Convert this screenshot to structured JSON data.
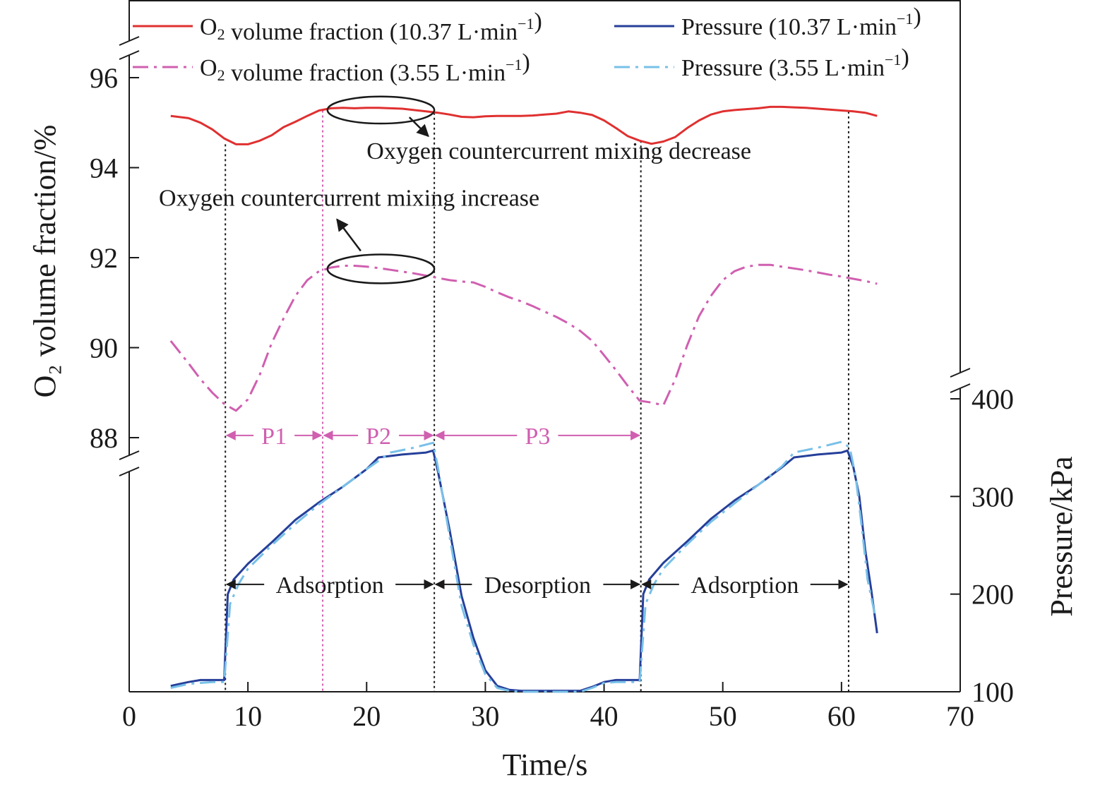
{
  "chart_data": {
    "type": "line",
    "xlabel": "Time/s",
    "ylabel_left": "O₂ volume fraction/%",
    "ylabel_right": "Pressure/kPa",
    "xlim": [
      0,
      70
    ],
    "xticks": [
      0,
      10,
      20,
      30,
      40,
      50,
      60,
      70
    ],
    "ylim_left_segment": [
      87.5,
      96.5
    ],
    "yticks_left": [
      88,
      90,
      92,
      94,
      96
    ],
    "ylim_right_segment": [
      100,
      400
    ],
    "yticks_right": [
      100,
      200,
      300,
      400
    ],
    "grid": false,
    "legend_position": "top",
    "axis_breaks": [
      "left-axis-top",
      "left-axis-lower",
      "right-axis-upper"
    ],
    "legend": [
      {
        "label_pre": "O",
        "label_sub": "2",
        "label_post": " volume fraction (10.37 L·min",
        "label_sup": "−1",
        "label_end": ")",
        "series_ref": 0
      },
      {
        "label_pre": "Pressure (10.37 L·min",
        "label_sub": "",
        "label_post": "",
        "label_sup": "−1",
        "label_end": ")",
        "series_ref": 1
      },
      {
        "label_pre": "O",
        "label_sub": "2",
        "label_post": " volume fraction (3.55 L·min",
        "label_sup": "−1",
        "label_end": ")",
        "series_ref": 2
      },
      {
        "label_pre": "Pressure (3.55 L·min",
        "label_sub": "",
        "label_post": "",
        "label_sup": "−1",
        "label_end": ")",
        "series_ref": 3
      }
    ],
    "series": [
      {
        "axis": "left",
        "color": "#e03030",
        "dash": "solid",
        "points": [
          [
            3.5,
            95.15
          ],
          [
            5,
            95.1
          ],
          [
            6,
            95.0
          ],
          [
            7,
            94.85
          ],
          [
            8,
            94.65
          ],
          [
            9,
            94.52
          ],
          [
            10,
            94.52
          ],
          [
            11,
            94.6
          ],
          [
            12,
            94.72
          ],
          [
            13,
            94.9
          ],
          [
            14,
            95.02
          ],
          [
            15,
            95.15
          ],
          [
            16,
            95.27
          ],
          [
            17,
            95.32
          ],
          [
            18,
            95.33
          ],
          [
            19,
            95.32
          ],
          [
            20,
            95.33
          ],
          [
            21,
            95.33
          ],
          [
            22,
            95.32
          ],
          [
            23,
            95.31
          ],
          [
            24,
            95.28
          ],
          [
            25,
            95.25
          ],
          [
            26,
            95.22
          ],
          [
            27,
            95.18
          ],
          [
            28,
            95.13
          ],
          [
            29,
            95.12
          ],
          [
            30,
            95.14
          ],
          [
            31,
            95.15
          ],
          [
            32,
            95.15
          ],
          [
            33,
            95.15
          ],
          [
            34,
            95.16
          ],
          [
            35,
            95.18
          ],
          [
            36,
            95.2
          ],
          [
            37,
            95.25
          ],
          [
            38,
            95.22
          ],
          [
            39,
            95.17
          ],
          [
            40,
            95.05
          ],
          [
            41,
            94.88
          ],
          [
            42,
            94.7
          ],
          [
            43,
            94.6
          ],
          [
            44,
            94.53
          ],
          [
            45,
            94.58
          ],
          [
            46,
            94.68
          ],
          [
            47,
            94.88
          ],
          [
            48,
            95.05
          ],
          [
            49,
            95.18
          ],
          [
            50,
            95.25
          ],
          [
            51,
            95.28
          ],
          [
            52,
            95.3
          ],
          [
            53,
            95.32
          ],
          [
            54,
            95.35
          ],
          [
            55,
            95.35
          ],
          [
            56,
            95.34
          ],
          [
            57,
            95.33
          ],
          [
            58,
            95.31
          ],
          [
            59,
            95.29
          ],
          [
            60,
            95.27
          ],
          [
            61,
            95.25
          ],
          [
            62,
            95.22
          ],
          [
            63,
            95.15
          ]
        ]
      },
      {
        "axis": "right",
        "color": "#263f9a",
        "dash": "solid",
        "points": [
          [
            3.5,
            106
          ],
          [
            5,
            110
          ],
          [
            6,
            112
          ],
          [
            7,
            112
          ],
          [
            8,
            112
          ],
          [
            8.3,
            200
          ],
          [
            8.8,
            215
          ],
          [
            10,
            231
          ],
          [
            12,
            253
          ],
          [
            14,
            276
          ],
          [
            16,
            294
          ],
          [
            18,
            310
          ],
          [
            20,
            328
          ],
          [
            21,
            340
          ],
          [
            23,
            343
          ],
          [
            25,
            345
          ],
          [
            25.6,
            347
          ],
          [
            26,
            326
          ],
          [
            27,
            265
          ],
          [
            28,
            198
          ],
          [
            29,
            155
          ],
          [
            30,
            122
          ],
          [
            31,
            106
          ],
          [
            32,
            102
          ],
          [
            33,
            101
          ],
          [
            34,
            101
          ],
          [
            35,
            101
          ],
          [
            36,
            101
          ],
          [
            37,
            101
          ],
          [
            38,
            101
          ],
          [
            39,
            105
          ],
          [
            40,
            110
          ],
          [
            41,
            112
          ],
          [
            42,
            112
          ],
          [
            43,
            112
          ],
          [
            43.3,
            200
          ],
          [
            43.8,
            215
          ],
          [
            45,
            232
          ],
          [
            47,
            254
          ],
          [
            49,
            277
          ],
          [
            51,
            296
          ],
          [
            53,
            312
          ],
          [
            55,
            330
          ],
          [
            56,
            340
          ],
          [
            58,
            343
          ],
          [
            60,
            345
          ],
          [
            60.5,
            347
          ],
          [
            61,
            330
          ],
          [
            61.5,
            300
          ],
          [
            62,
            245
          ],
          [
            62.5,
            205
          ],
          [
            63,
            160
          ]
        ]
      },
      {
        "axis": "left",
        "color": "#d05fb0",
        "dash": "dashdot",
        "points": [
          [
            3.5,
            90.15
          ],
          [
            5,
            89.65
          ],
          [
            6,
            89.3
          ],
          [
            7,
            89.0
          ],
          [
            8,
            88.75
          ],
          [
            9,
            88.6
          ],
          [
            10,
            88.85
          ],
          [
            11,
            89.4
          ],
          [
            12,
            90.1
          ],
          [
            13,
            90.65
          ],
          [
            14,
            91.15
          ],
          [
            15,
            91.5
          ],
          [
            16,
            91.7
          ],
          [
            17,
            91.78
          ],
          [
            18,
            91.82
          ],
          [
            19,
            91.82
          ],
          [
            20,
            91.8
          ],
          [
            21,
            91.77
          ],
          [
            22,
            91.73
          ],
          [
            23,
            91.69
          ],
          [
            24,
            91.65
          ],
          [
            25,
            91.6
          ],
          [
            26,
            91.55
          ],
          [
            27,
            91.5
          ],
          [
            28,
            91.47
          ],
          [
            29,
            91.45
          ],
          [
            30,
            91.35
          ],
          [
            31,
            91.23
          ],
          [
            32,
            91.12
          ],
          [
            33,
            91.03
          ],
          [
            34,
            90.92
          ],
          [
            35,
            90.8
          ],
          [
            36,
            90.68
          ],
          [
            37,
            90.54
          ],
          [
            38,
            90.37
          ],
          [
            39,
            90.15
          ],
          [
            40,
            89.83
          ],
          [
            41,
            89.5
          ],
          [
            42,
            89.15
          ],
          [
            43,
            88.82
          ],
          [
            44,
            88.78
          ],
          [
            45,
            88.72
          ],
          [
            46,
            89.3
          ],
          [
            47,
            90.05
          ],
          [
            48,
            90.7
          ],
          [
            49,
            91.15
          ],
          [
            50,
            91.5
          ],
          [
            51,
            91.7
          ],
          [
            52,
            91.8
          ],
          [
            53,
            91.84
          ],
          [
            54,
            91.84
          ],
          [
            55,
            91.8
          ],
          [
            56,
            91.76
          ],
          [
            57,
            91.72
          ],
          [
            58,
            91.67
          ],
          [
            59,
            91.62
          ],
          [
            60,
            91.58
          ],
          [
            61,
            91.53
          ],
          [
            62,
            91.48
          ],
          [
            63,
            91.42
          ]
        ]
      },
      {
        "axis": "right",
        "color": "#78c0e8",
        "dash": "dashdot",
        "points": [
          [
            3.5,
            104
          ],
          [
            5,
            108
          ],
          [
            6,
            109
          ],
          [
            7,
            110
          ],
          [
            8,
            110
          ],
          [
            8.5,
            190
          ],
          [
            9.2,
            210
          ],
          [
            10,
            226
          ],
          [
            12,
            250
          ],
          [
            14,
            272
          ],
          [
            16,
            292
          ],
          [
            18,
            310
          ],
          [
            20,
            328
          ],
          [
            22,
            345
          ],
          [
            24,
            350
          ],
          [
            25.6,
            355
          ],
          [
            26,
            330
          ],
          [
            27,
            258
          ],
          [
            28,
            188
          ],
          [
            29,
            148
          ],
          [
            30,
            118
          ],
          [
            31,
            104
          ],
          [
            32,
            101
          ],
          [
            33,
            100
          ],
          [
            34,
            100
          ],
          [
            35,
            100
          ],
          [
            36,
            100
          ],
          [
            37,
            100
          ],
          [
            38,
            100
          ],
          [
            39,
            104
          ],
          [
            40,
            109
          ],
          [
            41,
            110
          ],
          [
            42,
            110
          ],
          [
            43,
            110
          ],
          [
            43.5,
            190
          ],
          [
            44.2,
            210
          ],
          [
            45,
            226
          ],
          [
            47,
            251
          ],
          [
            49,
            274
          ],
          [
            51,
            293
          ],
          [
            53,
            312
          ],
          [
            55,
            331
          ],
          [
            56,
            345
          ],
          [
            58,
            350
          ],
          [
            60,
            356
          ],
          [
            60.7,
            350
          ],
          [
            61.2,
            320
          ],
          [
            61.7,
            270
          ],
          [
            62.2,
            215
          ],
          [
            62.8,
            180
          ],
          [
            63,
            175
          ]
        ]
      }
    ],
    "phase_lines": [
      {
        "x": 8.1,
        "color": "#1a1a1a",
        "from_left": 94.52,
        "to": "bottom"
      },
      {
        "x": 16.3,
        "color": "#d05fb0",
        "from_left": 95.27,
        "to": "bottom"
      },
      {
        "x": 25.7,
        "color": "#1a1a1a",
        "from_left": 95.22,
        "to": "bottom"
      },
      {
        "x": 43.1,
        "color": "#1a1a1a",
        "from_left": 94.6,
        "to": "bottom"
      },
      {
        "x": 60.6,
        "color": "#1a1a1a",
        "from_left": 95.25,
        "to": "bottom"
      }
    ],
    "phase_spans": [
      {
        "label": "P1",
        "x1": 8.1,
        "x2": 16.3,
        "y_left": 88.05,
        "color": "#d05fb0"
      },
      {
        "label": "P2",
        "x1": 16.3,
        "x2": 25.7,
        "y_left": 88.05,
        "color": "#d05fb0"
      },
      {
        "label": "P3",
        "x1": 25.7,
        "x2": 43.1,
        "y_left": 88.05,
        "color": "#d05fb0"
      }
    ],
    "stage_spans": [
      {
        "label": "Adsorption",
        "x1": 8.1,
        "x2": 25.7,
        "y_right": 210,
        "color": "#1a1a1a"
      },
      {
        "label": "Desorption",
        "x1": 25.7,
        "x2": 43.1,
        "y_right": 210,
        "color": "#1a1a1a"
      },
      {
        "label": "Adsorption",
        "x1": 43.1,
        "x2": 60.6,
        "y_right": 210,
        "color": "#1a1a1a"
      }
    ],
    "annotations": [
      {
        "text": "Oxygen countercurrent mixing decrease",
        "x": 20.0,
        "y_left": 94.2,
        "anchor": "start"
      },
      {
        "text": "Oxygen countercurrent mixing increase",
        "x": 2.5,
        "y_left": 93.15,
        "anchor": "start"
      }
    ],
    "ellipses": [
      {
        "cx": 21.2,
        "cy_left": 95.28,
        "rx_data": 4.5,
        "ry_data": 0.3
      },
      {
        "cx": 21.2,
        "cy_left": 91.75,
        "rx_data": 4.5,
        "ry_data": 0.32
      }
    ],
    "arrows": [
      {
        "from": [
          23.6,
          95.12
        ],
        "to": [
          25.2,
          94.7
        ]
      },
      {
        "from": [
          19.5,
          92.15
        ],
        "to": [
          17.5,
          92.85
        ]
      }
    ]
  }
}
